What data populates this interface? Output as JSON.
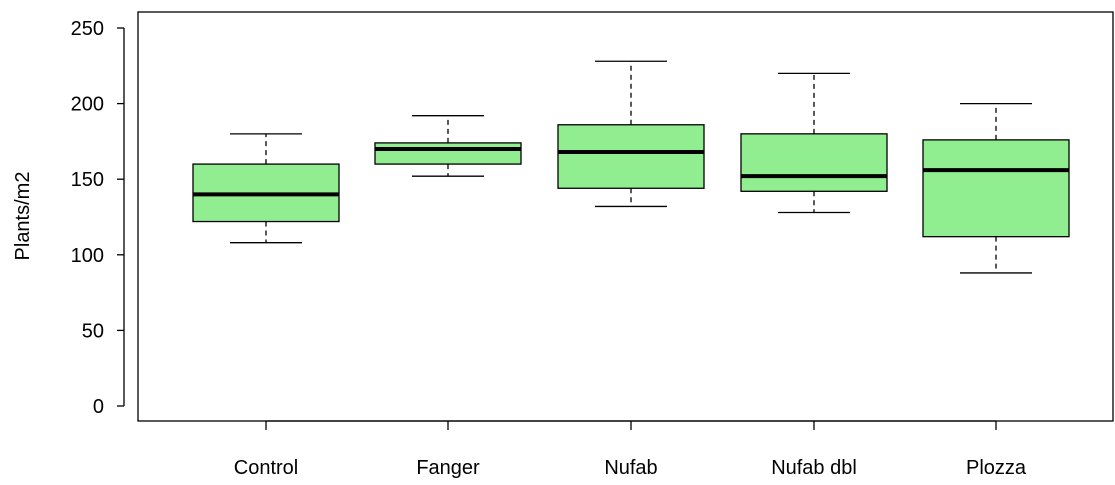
{
  "chart_data": {
    "type": "boxplot",
    "title": "",
    "xlabel": "",
    "ylabel": "Plants/m2",
    "ylim": [
      0,
      260
    ],
    "yticks": [
      0,
      50,
      100,
      150,
      200,
      250
    ],
    "categories": [
      "Control",
      "Fanger",
      "Nufab",
      "Nufab dbl",
      "Plozza"
    ],
    "boxes": [
      {
        "category": "Control",
        "min": 108,
        "q1": 122,
        "median": 140,
        "q3": 160,
        "max": 180
      },
      {
        "category": "Fanger",
        "min": 152,
        "q1": 160,
        "median": 170,
        "q3": 174,
        "max": 192
      },
      {
        "category": "Nufab",
        "min": 132,
        "q1": 144,
        "median": 168,
        "q3": 186,
        "max": 228
      },
      {
        "category": "Nufab dbl",
        "min": 128,
        "q1": 142,
        "median": 152,
        "q3": 180,
        "max": 220
      },
      {
        "category": "Plozza",
        "min": 88,
        "q1": 112,
        "median": 156,
        "q3": 176,
        "max": 200
      }
    ],
    "colors": {
      "box_fill": "#90ee90",
      "stroke": "#000000"
    },
    "grid": false,
    "legend": "none"
  }
}
